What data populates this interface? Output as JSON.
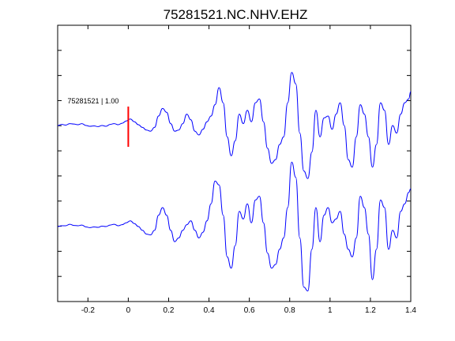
{
  "chart_data": {
    "type": "line",
    "title": "75281521.NC.NHV.EHZ",
    "xlabel": "",
    "ylabel": "",
    "xlim": [
      -0.35,
      1.4
    ],
    "x_ticks": [
      -0.2,
      0,
      0.2,
      0.4,
      0.6,
      0.8,
      1,
      1.2,
      1.4
    ],
    "x_tick_labels": [
      "-0.2",
      "0",
      "0.2",
      "0.4",
      "0.6",
      "0.8",
      "1",
      "1.2",
      "1.4"
    ],
    "y_ticks_shown": false,
    "grid": false,
    "line_color": "#0000ff",
    "marker_color": "#ff0000",
    "pick_marker": {
      "x": 0
    },
    "trace_label": "75281521 | 1.00",
    "series": [
      {
        "x": [
          -0.35,
          -0.33,
          -0.31,
          -0.29,
          -0.27,
          -0.25,
          -0.23,
          -0.21,
          -0.19,
          -0.17,
          -0.15,
          -0.13,
          -0.11,
          -0.09,
          -0.07,
          -0.05,
          -0.03,
          -0.01,
          0.01,
          0.03,
          0.05,
          0.07,
          0.09,
          0.11,
          0.13,
          0.15,
          0.17,
          0.19,
          0.21,
          0.23,
          0.25,
          0.27,
          0.29,
          0.31,
          0.33,
          0.35,
          0.37,
          0.39,
          0.41,
          0.43,
          0.45,
          0.47,
          0.49,
          0.51,
          0.53,
          0.55,
          0.57,
          0.59,
          0.61,
          0.63,
          0.65,
          0.67,
          0.69,
          0.71,
          0.73,
          0.75,
          0.77,
          0.79,
          0.81,
          0.83,
          0.85,
          0.87,
          0.89,
          0.91,
          0.93,
          0.95,
          0.97,
          0.99,
          1.01,
          1.03,
          1.05,
          1.07,
          1.09,
          1.11,
          1.13,
          1.15,
          1.17,
          1.19,
          1.21,
          1.23,
          1.25,
          1.27,
          1.29,
          1.31,
          1.33,
          1.35,
          1.37,
          1.39,
          1.4
        ],
        "values": [
          0.0,
          0.03,
          0.01,
          0.05,
          0.04,
          0.02,
          0.05,
          0.0,
          -0.02,
          -0.01,
          -0.03,
          0.0,
          -0.02,
          0.03,
          0.05,
          0.02,
          0.06,
          0.12,
          0.17,
          0.1,
          0.02,
          -0.05,
          -0.12,
          -0.15,
          -0.05,
          0.25,
          0.45,
          0.35,
          0.05,
          -0.15,
          -0.12,
          0.05,
          0.3,
          0.15,
          -0.15,
          -0.25,
          -0.1,
          0.1,
          0.25,
          0.55,
          1.0,
          0.6,
          -0.3,
          -0.8,
          -0.4,
          0.3,
          0.05,
          0.4,
          0.1,
          0.6,
          0.7,
          0.1,
          -0.6,
          -1.0,
          -0.9,
          -0.5,
          -0.3,
          0.6,
          1.4,
          1.1,
          -0.2,
          -1.2,
          -1.4,
          -0.7,
          0.4,
          -0.3,
          0.2,
          0.25,
          -0.1,
          0.3,
          0.6,
          0.0,
          -0.9,
          -1.1,
          -0.3,
          0.55,
          0.3,
          -0.3,
          -1.1,
          -0.5,
          0.6,
          0.4,
          -0.5,
          0.0,
          -0.2,
          0.3,
          0.6,
          0.7,
          0.9
        ],
        "trace_offset": 1
      },
      {
        "x": [
          -0.35,
          -0.33,
          -0.31,
          -0.29,
          -0.27,
          -0.25,
          -0.23,
          -0.21,
          -0.19,
          -0.17,
          -0.15,
          -0.13,
          -0.11,
          -0.09,
          -0.07,
          -0.05,
          -0.03,
          -0.01,
          0.01,
          0.03,
          0.05,
          0.07,
          0.09,
          0.11,
          0.13,
          0.15,
          0.17,
          0.19,
          0.21,
          0.23,
          0.25,
          0.27,
          0.29,
          0.31,
          0.33,
          0.35,
          0.37,
          0.39,
          0.41,
          0.43,
          0.45,
          0.47,
          0.49,
          0.51,
          0.53,
          0.55,
          0.57,
          0.59,
          0.61,
          0.63,
          0.65,
          0.67,
          0.69,
          0.71,
          0.73,
          0.75,
          0.77,
          0.79,
          0.81,
          0.83,
          0.85,
          0.87,
          0.89,
          0.91,
          0.93,
          0.95,
          0.97,
          0.99,
          1.01,
          1.03,
          1.05,
          1.07,
          1.09,
          1.11,
          1.13,
          1.15,
          1.17,
          1.19,
          1.21,
          1.23,
          1.25,
          1.27,
          1.29,
          1.31,
          1.33,
          1.35,
          1.37,
          1.39,
          1.4
        ],
        "values": [
          0.0,
          0.02,
          0.02,
          0.06,
          0.03,
          0.02,
          0.04,
          -0.01,
          -0.03,
          -0.01,
          -0.02,
          0.01,
          0.0,
          0.04,
          0.06,
          0.02,
          0.05,
          0.1,
          0.15,
          0.08,
          0.0,
          -0.1,
          -0.2,
          -0.22,
          -0.1,
          0.3,
          0.5,
          0.3,
          -0.1,
          -0.4,
          -0.3,
          -0.1,
          0.05,
          0.15,
          -0.1,
          -0.3,
          -0.15,
          0.15,
          0.6,
          1.2,
          1.1,
          0.3,
          -0.8,
          -1.1,
          -0.5,
          0.4,
          0.2,
          0.6,
          0.1,
          0.7,
          0.8,
          0.1,
          -0.7,
          -1.1,
          -1.0,
          -0.6,
          -0.3,
          0.5,
          1.7,
          1.3,
          -0.3,
          -1.6,
          -1.7,
          -0.6,
          0.5,
          -0.4,
          0.3,
          0.5,
          0.1,
          0.2,
          0.4,
          -0.2,
          -0.6,
          -0.8,
          -0.3,
          0.8,
          0.5,
          -0.2,
          -1.4,
          -0.6,
          0.7,
          0.5,
          -0.6,
          -0.1,
          -0.3,
          0.4,
          0.6,
          0.9,
          1.0
        ],
        "trace_offset": 0
      }
    ]
  }
}
